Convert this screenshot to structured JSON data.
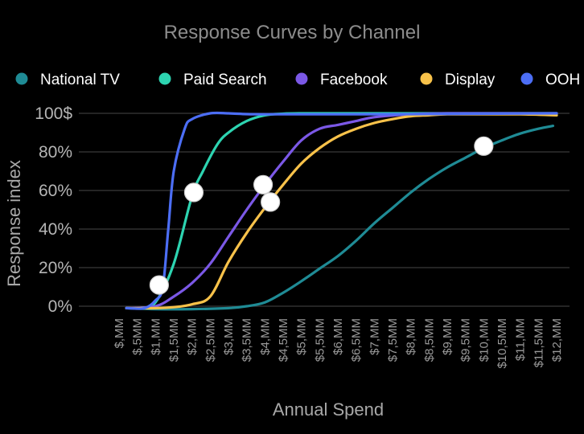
{
  "chart_data": {
    "type": "line",
    "title": "Response Curves by Channel",
    "xlabel": "Annual Spend",
    "ylabel": "Response index",
    "xlim": [
      0,
      12
    ],
    "ylim": [
      0,
      100
    ],
    "x_ticks": [
      {
        "value": 0,
        "label": "$,MM"
      },
      {
        "value": 0.5,
        "label": "$,5MM"
      },
      {
        "value": 1,
        "label": "$1,MM"
      },
      {
        "value": 1.5,
        "label": "$1,5MM"
      },
      {
        "value": 2,
        "label": "$2,MM"
      },
      {
        "value": 2.5,
        "label": "$2,5MM"
      },
      {
        "value": 3,
        "label": "$3,MM"
      },
      {
        "value": 3.5,
        "label": "$3,5MM"
      },
      {
        "value": 4,
        "label": "$4,MM"
      },
      {
        "value": 4.5,
        "label": "$4,5MM"
      },
      {
        "value": 5,
        "label": "$5,MM"
      },
      {
        "value": 5.5,
        "label": "$5,5MM"
      },
      {
        "value": 6,
        "label": "$6,MM"
      },
      {
        "value": 6.5,
        "label": "$6,5MM"
      },
      {
        "value": 7,
        "label": "$7,MM"
      },
      {
        "value": 7.5,
        "label": "$7,5MM"
      },
      {
        "value": 8,
        "label": "$8,MM"
      },
      {
        "value": 8.5,
        "label": "$8,5MM"
      },
      {
        "value": 9,
        "label": "$9,MM"
      },
      {
        "value": 9.5,
        "label": "$9,5MM"
      },
      {
        "value": 10,
        "label": "$10,MM"
      },
      {
        "value": 10.5,
        "label": "$10,5MM"
      },
      {
        "value": 11,
        "label": "$11,MM"
      },
      {
        "value": 11.5,
        "label": "$11,5MM"
      },
      {
        "value": 12,
        "label": "$12,MM"
      }
    ],
    "y_ticks": [
      {
        "value": 0,
        "label": "0%"
      },
      {
        "value": 20,
        "label": "20%"
      },
      {
        "value": 40,
        "label": "40%"
      },
      {
        "value": 60,
        "label": "60%"
      },
      {
        "value": 80,
        "label": "80%"
      },
      {
        "value": 100,
        "label": "100$"
      }
    ],
    "grid": {
      "horizontal": true,
      "vertical": false
    },
    "legend_position": "top",
    "series": [
      {
        "name": "National TV",
        "color": "#1f8b95",
        "points": [
          [
            0.2,
            -1
          ],
          [
            1,
            -1.5
          ],
          [
            2,
            -1.5
          ],
          [
            3,
            -1
          ],
          [
            3.5,
            0
          ],
          [
            4,
            2
          ],
          [
            4.5,
            7
          ],
          [
            5,
            13
          ],
          [
            5.5,
            19.5
          ],
          [
            6,
            26
          ],
          [
            6.5,
            34
          ],
          [
            7,
            43
          ],
          [
            7.5,
            51
          ],
          [
            8,
            59
          ],
          [
            8.5,
            66
          ],
          [
            9,
            72
          ],
          [
            9.5,
            77
          ],
          [
            10,
            82
          ],
          [
            10.5,
            86
          ],
          [
            11,
            89.5
          ],
          [
            11.5,
            92
          ],
          [
            11.9,
            93.5
          ]
        ],
        "marker": [
          10,
          83
        ]
      },
      {
        "name": "Paid Search",
        "color": "#2dd4b1",
        "points": [
          [
            0.2,
            -1
          ],
          [
            0.6,
            -0.8
          ],
          [
            1,
            2
          ],
          [
            1.5,
            22
          ],
          [
            2,
            57
          ],
          [
            2.3,
            70
          ],
          [
            2.7,
            84
          ],
          [
            3,
            90
          ],
          [
            3.5,
            96
          ],
          [
            4,
            99
          ],
          [
            4.5,
            99.8
          ],
          [
            5,
            100
          ],
          [
            6,
            100
          ],
          [
            8,
            100
          ],
          [
            10,
            100
          ],
          [
            12,
            100
          ]
        ],
        "marker": [
          2.05,
          59
        ]
      },
      {
        "name": "Facebook",
        "color": "#7b58e6",
        "points": [
          [
            0.2,
            -1
          ],
          [
            1,
            0
          ],
          [
            1.5,
            5
          ],
          [
            2,
            12
          ],
          [
            2.5,
            22
          ],
          [
            3,
            36
          ],
          [
            3.5,
            50
          ],
          [
            4,
            63
          ],
          [
            4.5,
            75
          ],
          [
            5,
            86
          ],
          [
            5.5,
            92
          ],
          [
            6,
            94
          ],
          [
            6.5,
            96
          ],
          [
            7,
            98
          ],
          [
            8,
            99.5
          ],
          [
            9,
            100
          ],
          [
            10,
            100
          ],
          [
            11,
            100
          ],
          [
            12,
            100
          ]
        ],
        "marker": [
          3.95,
          63
        ]
      },
      {
        "name": "Display",
        "color": "#f8c24a",
        "points": [
          [
            0.2,
            -1
          ],
          [
            1,
            -1
          ],
          [
            1.5,
            -0.5
          ],
          [
            2,
            1
          ],
          [
            2.5,
            5
          ],
          [
            3,
            23
          ],
          [
            3.5,
            38
          ],
          [
            4,
            51
          ],
          [
            4.5,
            63
          ],
          [
            5,
            74
          ],
          [
            5.5,
            82
          ],
          [
            6,
            88
          ],
          [
            6.5,
            92
          ],
          [
            7,
            95
          ],
          [
            7.5,
            97
          ],
          [
            8,
            98.5
          ],
          [
            8.5,
            99
          ],
          [
            9,
            99.5
          ],
          [
            10,
            99.5
          ],
          [
            11,
            99.5
          ],
          [
            12,
            99
          ]
        ],
        "marker": [
          4.15,
          54
        ]
      },
      {
        "name": "OOH",
        "color": "#4c6ef5",
        "points": [
          [
            0.2,
            -1
          ],
          [
            0.7,
            -1
          ],
          [
            1,
            3
          ],
          [
            1.2,
            10
          ],
          [
            1.35,
            40
          ],
          [
            1.5,
            70
          ],
          [
            1.8,
            92
          ],
          [
            2,
            97
          ],
          [
            2.5,
            100
          ],
          [
            3,
            100
          ],
          [
            3.5,
            99.6
          ],
          [
            4,
            99.5
          ],
          [
            5,
            99.5
          ],
          [
            6,
            99.5
          ],
          [
            8,
            99.6
          ],
          [
            10,
            99.8
          ],
          [
            12,
            100
          ]
        ],
        "marker": [
          1.1,
          11
        ]
      }
    ]
  }
}
